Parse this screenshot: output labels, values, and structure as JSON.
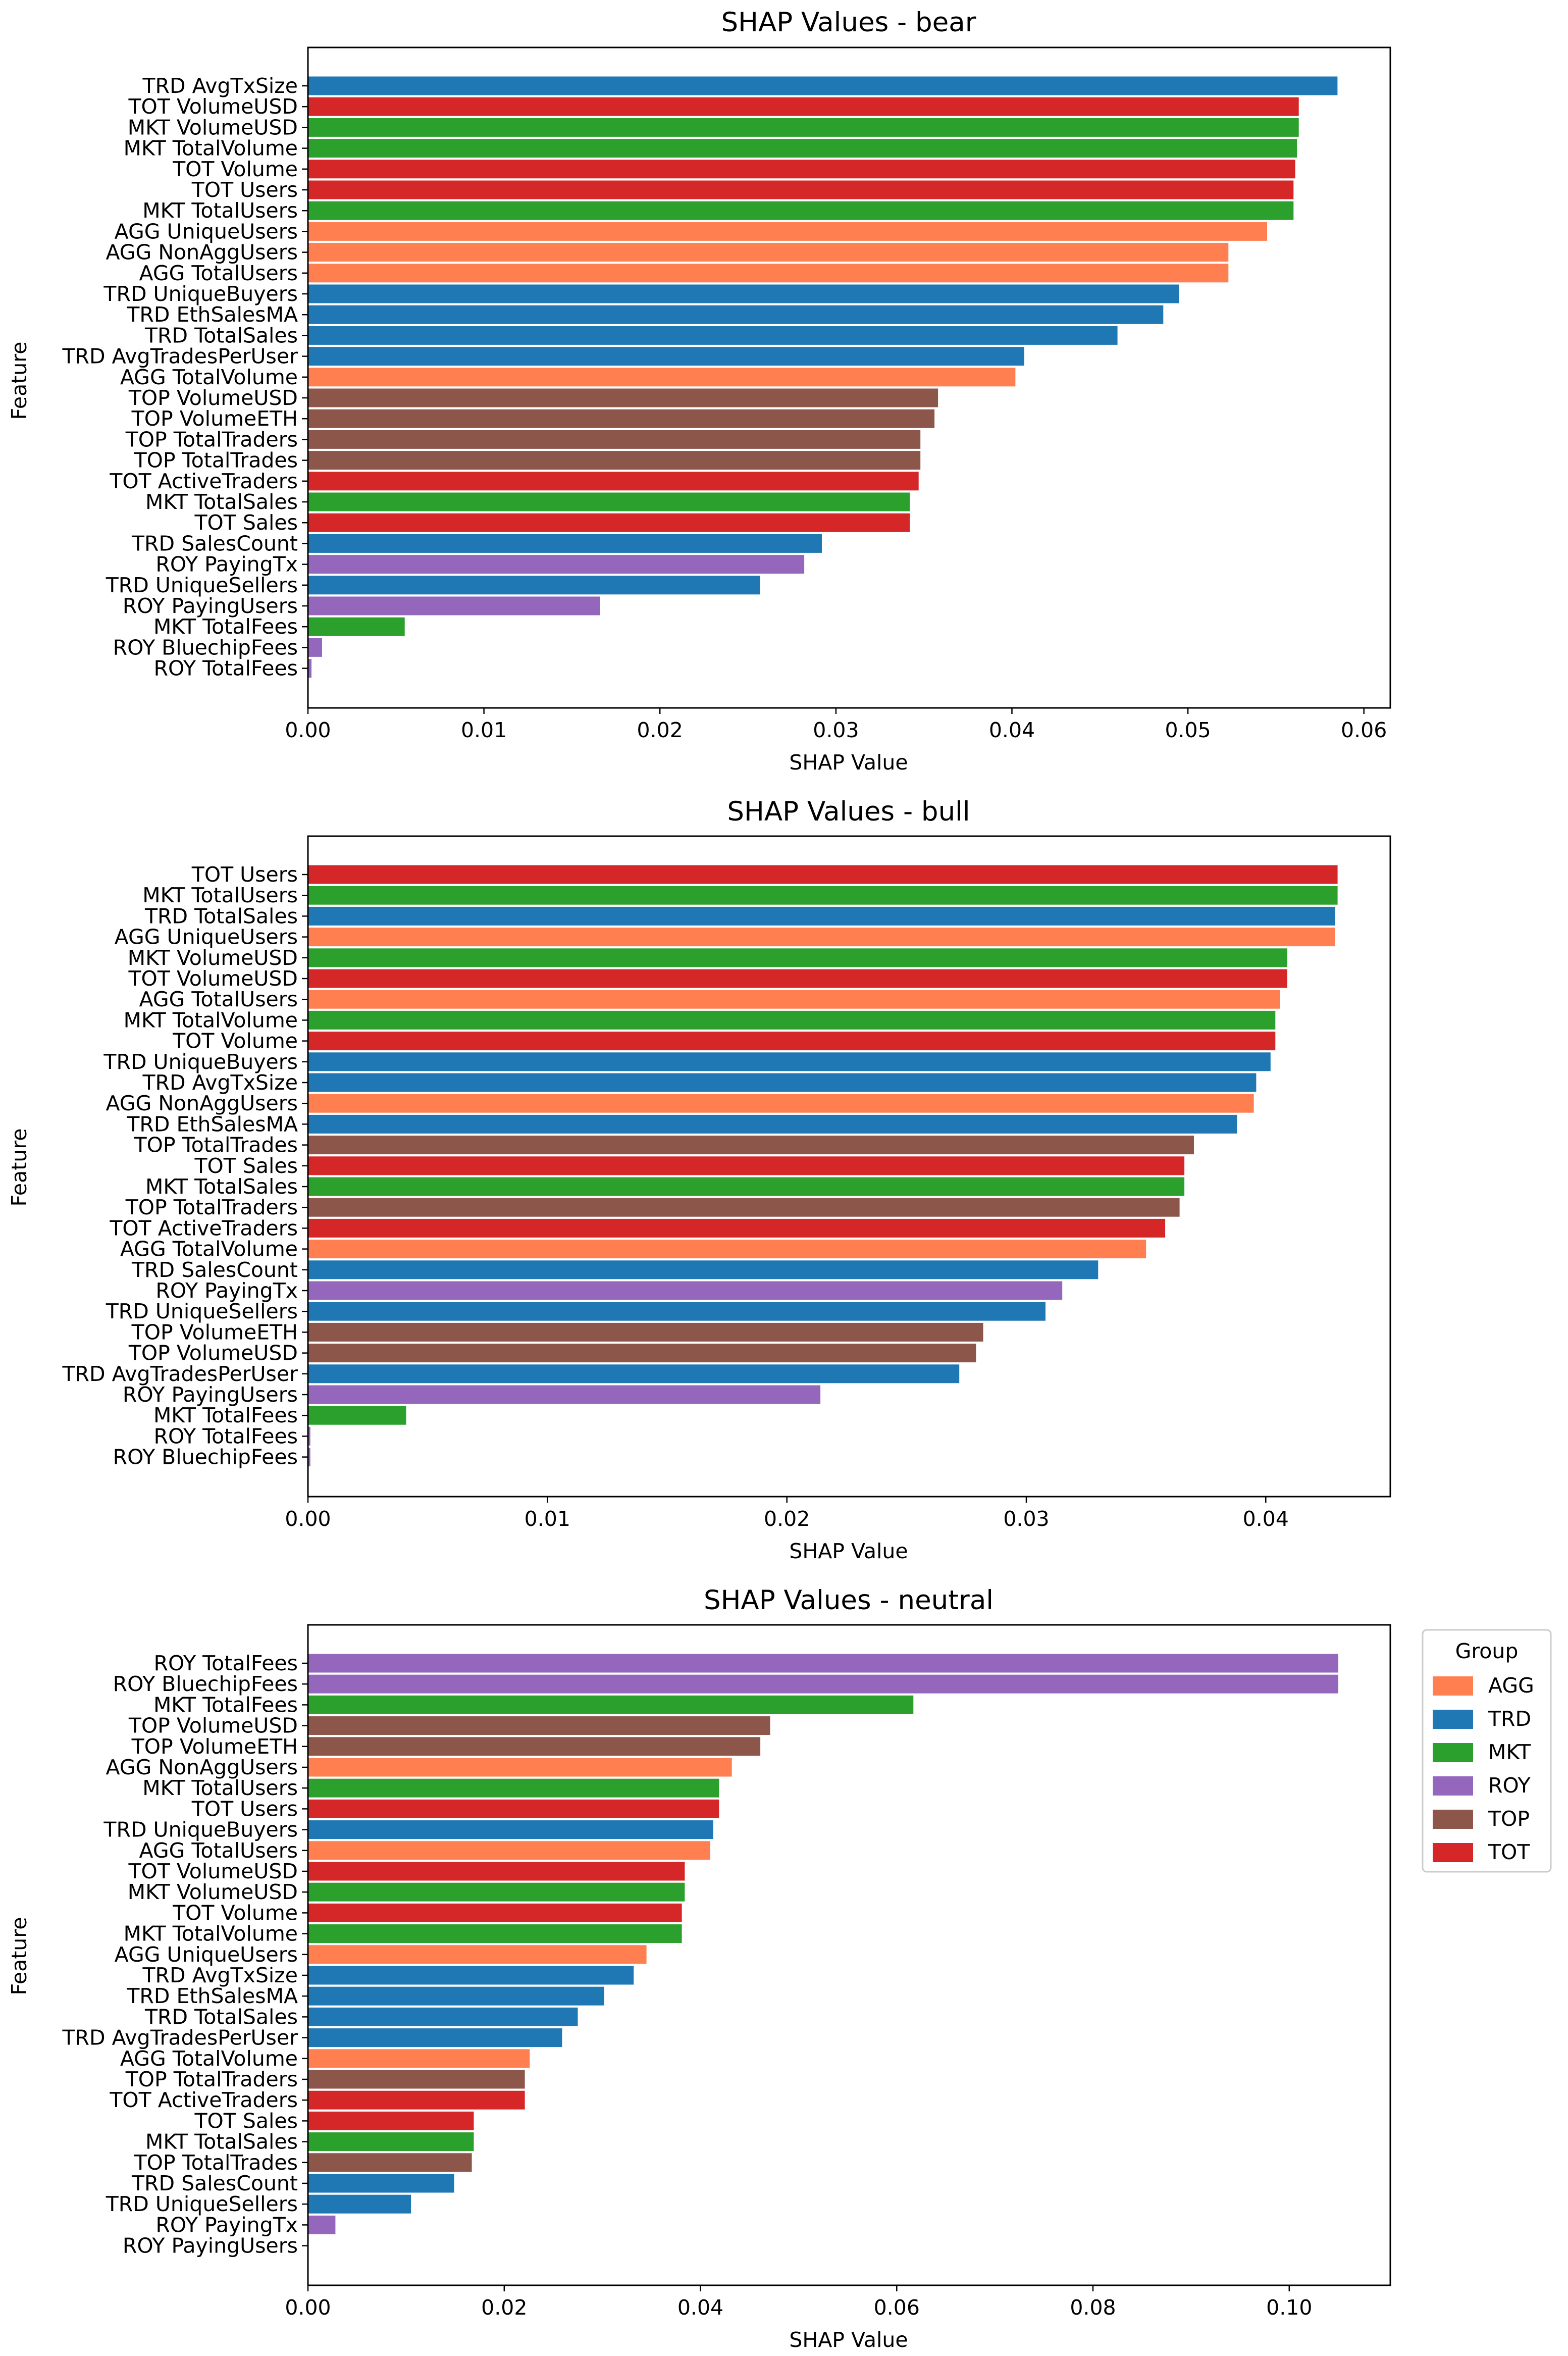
{
  "colors": {
    "AGG": "#ff7f50",
    "TRD": "#1f77b4",
    "MKT": "#2ca02c",
    "ROY": "#9467bd",
    "TOP": "#8c564b",
    "TOT": "#d62728"
  },
  "legend": {
    "title": "Group",
    "items": [
      {
        "label": "AGG",
        "color": "#ff7f50"
      },
      {
        "label": "TRD",
        "color": "#1f77b4"
      },
      {
        "label": "MKT",
        "color": "#2ca02c"
      },
      {
        "label": "ROY",
        "color": "#9467bd"
      },
      {
        "label": "TOP",
        "color": "#8c564b"
      },
      {
        "label": "TOT",
        "color": "#d62728"
      }
    ]
  },
  "chart_data": [
    {
      "type": "bar",
      "orientation": "horizontal",
      "title": "SHAP Values - bear",
      "xlabel": "SHAP Value",
      "ylabel": "Feature",
      "xlim": [
        0,
        0.0615
      ],
      "xticks": [
        0.0,
        0.01,
        0.02,
        0.03,
        0.04,
        0.05,
        0.06
      ],
      "xtick_labels": [
        "0.00",
        "0.01",
        "0.02",
        "0.03",
        "0.04",
        "0.05",
        "0.06"
      ],
      "categories": [
        "TRD AvgTxSize",
        "TOT VolumeUSD",
        "MKT VolumeUSD",
        "MKT TotalVolume",
        "TOT Volume",
        "TOT Users",
        "MKT TotalUsers",
        "AGG UniqueUsers",
        "AGG NonAggUsers",
        "AGG TotalUsers",
        "TRD UniqueBuyers",
        "TRD EthSalesMA",
        "TRD TotalSales",
        "TRD AvgTradesPerUser",
        "AGG TotalVolume",
        "TOP VolumeUSD",
        "TOP VolumeETH",
        "TOP TotalTraders",
        "TOP TotalTrades",
        "TOT ActiveTraders",
        "MKT TotalSales",
        "TOT Sales",
        "TRD SalesCount",
        "ROY PayingTx",
        "TRD UniqueSellers",
        "ROY PayingUsers",
        "MKT TotalFees",
        "ROY BluechipFees",
        "ROY TotalFees"
      ],
      "groups": [
        "TRD",
        "TOT",
        "MKT",
        "MKT",
        "TOT",
        "TOT",
        "MKT",
        "AGG",
        "AGG",
        "AGG",
        "TRD",
        "TRD",
        "TRD",
        "TRD",
        "AGG",
        "TOP",
        "TOP",
        "TOP",
        "TOP",
        "TOT",
        "MKT",
        "TOT",
        "TRD",
        "ROY",
        "TRD",
        "ROY",
        "MKT",
        "ROY",
        "ROY"
      ],
      "values": [
        0.0585,
        0.0563,
        0.0563,
        0.0562,
        0.0561,
        0.056,
        0.056,
        0.0545,
        0.0523,
        0.0523,
        0.0495,
        0.0486,
        0.046,
        0.0407,
        0.0402,
        0.0358,
        0.0356,
        0.0348,
        0.0348,
        0.0347,
        0.0342,
        0.0342,
        0.0292,
        0.0282,
        0.0257,
        0.0166,
        0.0055,
        0.0008,
        0.0002
      ]
    },
    {
      "type": "bar",
      "orientation": "horizontal",
      "title": "SHAP Values - bull",
      "xlabel": "SHAP Value",
      "ylabel": "Feature",
      "xlim": [
        0,
        0.0452
      ],
      "xticks": [
        0.0,
        0.01,
        0.02,
        0.03,
        0.04
      ],
      "xtick_labels": [
        "0.00",
        "0.01",
        "0.02",
        "0.03",
        "0.04"
      ],
      "categories": [
        "TOT Users",
        "MKT TotalUsers",
        "TRD TotalSales",
        "AGG UniqueUsers",
        "MKT VolumeUSD",
        "TOT VolumeUSD",
        "AGG TotalUsers",
        "MKT TotalVolume",
        "TOT Volume",
        "TRD UniqueBuyers",
        "TRD AvgTxSize",
        "AGG NonAggUsers",
        "TRD EthSalesMA",
        "TOP TotalTrades",
        "TOT Sales",
        "MKT TotalSales",
        "TOP TotalTraders",
        "TOT ActiveTraders",
        "AGG TotalVolume",
        "TRD SalesCount",
        "ROY PayingTx",
        "TRD UniqueSellers",
        "TOP VolumeETH",
        "TOP VolumeUSD",
        "TRD AvgTradesPerUser",
        "ROY PayingUsers",
        "MKT TotalFees",
        "ROY TotalFees",
        "ROY BluechipFees"
      ],
      "groups": [
        "TOT",
        "MKT",
        "TRD",
        "AGG",
        "MKT",
        "TOT",
        "AGG",
        "MKT",
        "TOT",
        "TRD",
        "TRD",
        "AGG",
        "TRD",
        "TOP",
        "TOT",
        "MKT",
        "TOP",
        "TOT",
        "AGG",
        "TRD",
        "ROY",
        "TRD",
        "TOP",
        "TOP",
        "TRD",
        "ROY",
        "MKT",
        "ROY",
        "ROY"
      ],
      "values": [
        0.043,
        0.043,
        0.0429,
        0.0429,
        0.0409,
        0.0409,
        0.0406,
        0.0404,
        0.0404,
        0.0402,
        0.0396,
        0.0395,
        0.0388,
        0.037,
        0.0366,
        0.0366,
        0.0364,
        0.0358,
        0.035,
        0.033,
        0.0315,
        0.0308,
        0.0282,
        0.0279,
        0.0272,
        0.0214,
        0.0041,
        0.0001,
        0.0001
      ]
    },
    {
      "type": "bar",
      "orientation": "horizontal",
      "title": "SHAP Values - neutral",
      "xlabel": "SHAP Value",
      "ylabel": "Feature",
      "xlim": [
        0,
        0.1103
      ],
      "xticks": [
        0.0,
        0.02,
        0.04,
        0.06,
        0.08,
        0.1
      ],
      "xtick_labels": [
        "0.00",
        "0.02",
        "0.04",
        "0.06",
        "0.08",
        "0.10"
      ],
      "categories": [
        "ROY TotalFees",
        "ROY BluechipFees",
        "MKT TotalFees",
        "TOP VolumeUSD",
        "TOP VolumeETH",
        "AGG NonAggUsers",
        "MKT TotalUsers",
        "TOT Users",
        "TRD UniqueBuyers",
        "AGG TotalUsers",
        "TOT VolumeUSD",
        "MKT VolumeUSD",
        "TOT Volume",
        "MKT TotalVolume",
        "AGG UniqueUsers",
        "TRD AvgTxSize",
        "TRD EthSalesMA",
        "TRD TotalSales",
        "TRD AvgTradesPerUser",
        "AGG TotalVolume",
        "TOP TotalTraders",
        "TOT ActiveTraders",
        "TOT Sales",
        "MKT TotalSales",
        "TOP TotalTrades",
        "TRD SalesCount",
        "TRD UniqueSellers",
        "ROY PayingTx",
        "ROY PayingUsers"
      ],
      "groups": [
        "ROY",
        "ROY",
        "MKT",
        "TOP",
        "TOP",
        "AGG",
        "MKT",
        "TOT",
        "TRD",
        "AGG",
        "TOT",
        "MKT",
        "TOT",
        "MKT",
        "AGG",
        "TRD",
        "TRD",
        "TRD",
        "TRD",
        "AGG",
        "TOP",
        "TOT",
        "TOT",
        "MKT",
        "TOP",
        "TRD",
        "TRD",
        "ROY",
        "ROY"
      ],
      "values": [
        0.105,
        0.105,
        0.0617,
        0.0471,
        0.0461,
        0.0432,
        0.0419,
        0.0419,
        0.0413,
        0.041,
        0.0384,
        0.0384,
        0.0381,
        0.0381,
        0.0345,
        0.0332,
        0.0302,
        0.0275,
        0.0259,
        0.0226,
        0.0221,
        0.0221,
        0.0169,
        0.0169,
        0.0167,
        0.0149,
        0.0105,
        0.0028,
        0.0
      ]
    }
  ]
}
